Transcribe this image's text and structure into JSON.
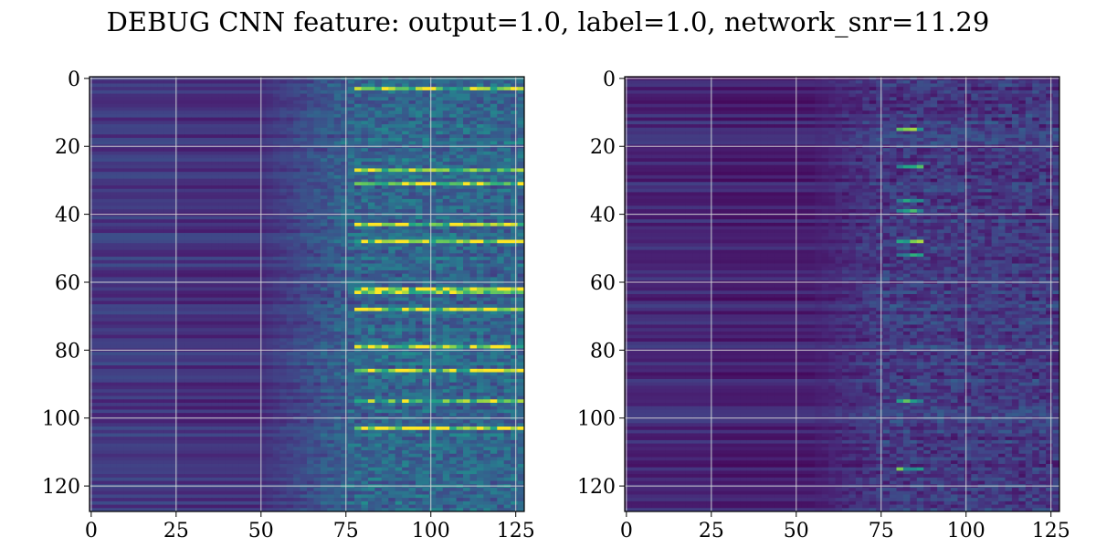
{
  "chart_data": {
    "title": "DEBUG CNN feature: output=1.0, label=1.0, network_snr=11.29",
    "type": "heatmap",
    "colormap": "viridis",
    "grid": true,
    "panels": [
      {
        "name": "",
        "rows": 128,
        "cols": 128,
        "xlim": [
          0,
          127
        ],
        "ylim": [
          127,
          0
        ],
        "x_ticks": [
          0,
          25,
          50,
          75,
          100,
          125
        ],
        "y_ticks": [
          0,
          20,
          40,
          60,
          80,
          100,
          120
        ],
        "profile": {
          "base_left": 0.18,
          "ramp_start_col": 50,
          "ramp_end_col": 78,
          "high_level": 0.42,
          "noise": 0.28,
          "bright_rows": [
            3,
            27,
            31,
            43,
            48,
            62,
            63,
            68,
            79,
            86,
            95,
            103
          ],
          "bright_cols": [
            78,
            128
          ]
        }
      },
      {
        "name": "",
        "rows": 128,
        "cols": 128,
        "xlim": [
          0,
          127
        ],
        "ylim": [
          127,
          0
        ],
        "x_ticks": [
          0,
          25,
          50,
          75,
          100,
          125
        ],
        "y_ticks": [
          0,
          20,
          40,
          60,
          80,
          100,
          120
        ],
        "profile": {
          "base_left": 0.12,
          "ramp_start_col": 55,
          "ramp_end_col": 75,
          "high_level": 0.22,
          "noise": 0.22,
          "bright_rows": [
            15,
            26,
            36,
            39,
            48,
            52,
            95,
            115
          ],
          "bright_cols": [
            79,
            86
          ]
        }
      }
    ]
  }
}
